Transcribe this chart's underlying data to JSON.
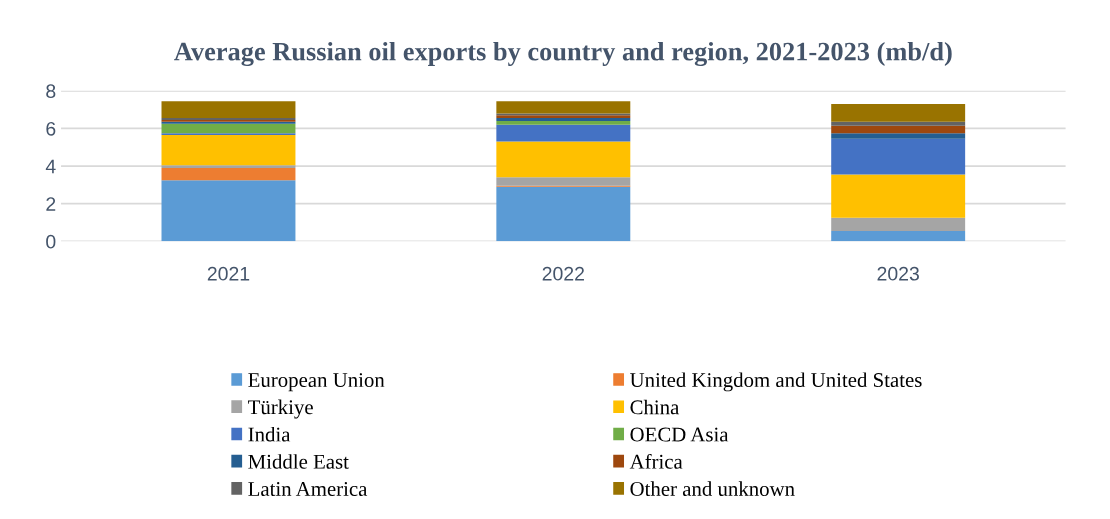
{
  "chart_data": {
    "type": "bar",
    "title": "Average Russian oil exports by country and region, 2021-2023 (mb/d)",
    "categories": [
      "2021",
      "2022",
      "2023"
    ],
    "stacked": true,
    "ylim": [
      0,
      8
    ],
    "yticks": [
      0,
      2,
      4,
      6,
      8
    ],
    "grid": "y",
    "legend": "bottom",
    "series": [
      {
        "name": "European Union",
        "color": "#5b9bd5",
        "values": [
          3.25,
          2.9,
          0.55
        ]
      },
      {
        "name": "United Kingdom and United States",
        "color": "#ed7d31",
        "values": [
          0.65,
          0.05,
          0
        ]
      },
      {
        "name": "Türkiye",
        "color": "#a5a5a5",
        "values": [
          0.15,
          0.45,
          0.7
        ]
      },
      {
        "name": "China",
        "color": "#ffc000",
        "values": [
          1.6,
          1.9,
          2.3
        ]
      },
      {
        "name": "India",
        "color": "#4472c4",
        "values": [
          0.1,
          0.9,
          1.9
        ]
      },
      {
        "name": "OECD Asia",
        "color": "#70ad47",
        "values": [
          0.5,
          0.2,
          0
        ]
      },
      {
        "name": "Middle East",
        "color": "#255e91",
        "values": [
          0.1,
          0.15,
          0.3
        ]
      },
      {
        "name": "Africa",
        "color": "#9e480e",
        "values": [
          0.1,
          0.15,
          0.4
        ]
      },
      {
        "name": "Latin America",
        "color": "#636363",
        "values": [
          0.1,
          0.1,
          0.2
        ]
      },
      {
        "name": "Other and unknown",
        "color": "#997300",
        "values": [
          0.9,
          0.65,
          0.95
        ]
      }
    ]
  }
}
